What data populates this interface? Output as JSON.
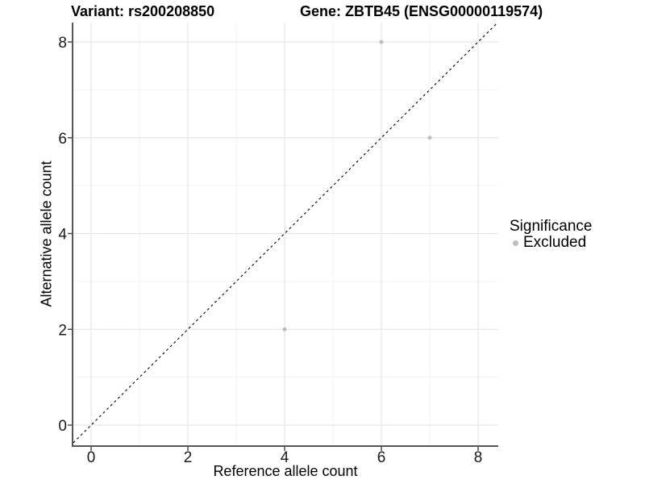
{
  "chart_data": {
    "type": "scatter",
    "titles": {
      "left": "Variant: rs200208850",
      "right": "Gene: ZBTB45 (ENSG00000119574)"
    },
    "xlabel": "Reference allele count",
    "ylabel": "Alternative allele count",
    "xlim": [
      -0.4,
      8.45
    ],
    "ylim": [
      -0.45,
      8.4
    ],
    "xticks": [
      0,
      2,
      4,
      6,
      8
    ],
    "yticks": [
      0,
      2,
      4,
      6,
      8
    ],
    "x_minor_ticks": [
      1,
      3,
      5,
      7
    ],
    "y_minor_ticks": [
      1,
      3,
      5,
      7
    ],
    "grid": "major-and-minor",
    "legend_position": "right",
    "series": [
      {
        "name": "Excluded",
        "color": "#bdbdbd",
        "points": [
          {
            "x": 6,
            "y": 8
          },
          {
            "x": 7,
            "y": 6
          },
          {
            "x": 4,
            "y": 2
          }
        ]
      }
    ],
    "reference_line": {
      "equation": "y = x",
      "style": "dashed",
      "color": "#000000"
    }
  },
  "legend": {
    "title": "Significance",
    "items": [
      {
        "label": "Excluded",
        "color": "#bdbdbd"
      }
    ]
  },
  "colors": {
    "background": "#ffffff",
    "grid_major": "#e6e6e6",
    "grid_minor": "#f3f3f3",
    "axis_line": "#565656",
    "tick_mark": "#4d4d4d",
    "tick_text": "#1a1a1a",
    "point": "#bdbdbd"
  }
}
